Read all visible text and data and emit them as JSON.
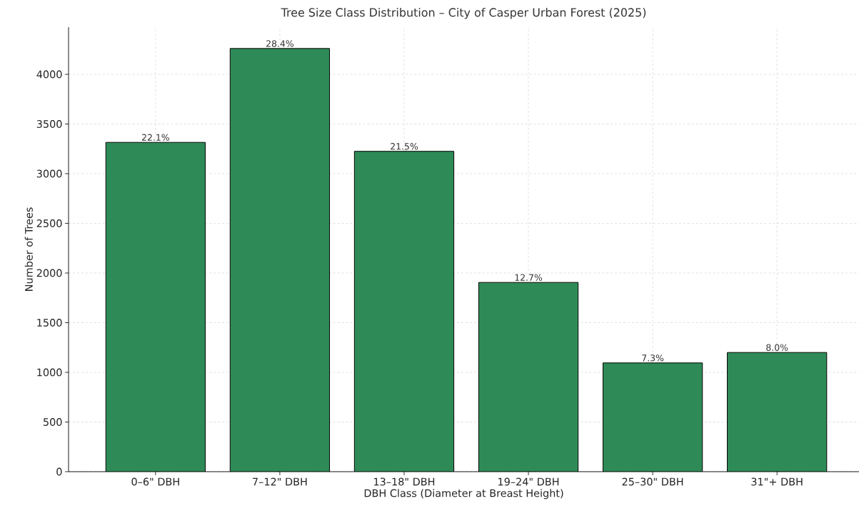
{
  "chart_data": {
    "type": "bar",
    "title": "Tree Size Class Distribution – City of Casper Urban Forest (2025)",
    "xlabel": "DBH Class (Diameter at Breast Height)",
    "ylabel": "Number of Trees",
    "categories": [
      "0–6\" DBH",
      "7–12\" DBH",
      "13–18\" DBH",
      "19–24\" DBH",
      "25–30\" DBH",
      "31\"+ DBH"
    ],
    "values": [
      3315,
      4260,
      3225,
      1905,
      1095,
      1200
    ],
    "annotations": [
      {
        "text": "22.1%",
        "x": "0–6\" DBH",
        "y": 3315
      },
      {
        "text": "28.4%",
        "x": "7–12\" DBH",
        "y": 4260
      },
      {
        "text": "21.5%",
        "x": "13–18\" DBH",
        "y": 3225
      },
      {
        "text": "12.7%",
        "x": "19–24\" DBH",
        "y": 1905
      },
      {
        "text": "7.3%",
        "x": "25–30\" DBH",
        "y": 1095
      },
      {
        "text": "8.0%",
        "x": "31\"+ DBH",
        "y": 1200
      }
    ],
    "color": "#2e8b57",
    "ylim": [
      0,
      4475
    ],
    "yticks": [
      0,
      500,
      1000,
      1500,
      2000,
      2500,
      3000,
      3500,
      4000
    ],
    "grid": true
  }
}
